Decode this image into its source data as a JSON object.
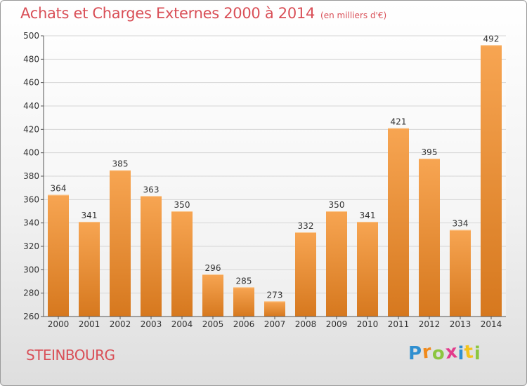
{
  "header": {
    "title": "Achats et Charges Externes 2000 à 2014",
    "subtitle": "(en milliers d'€)"
  },
  "footer": {
    "city": "STEINBOURG",
    "logo_letters": [
      {
        "ch": "P",
        "color": "#2f8fd0"
      },
      {
        "ch": "r",
        "color": "#f08a1c"
      },
      {
        "ch": "o",
        "color": "#8cc63f"
      },
      {
        "ch": "x",
        "color": "#e23c8c"
      },
      {
        "ch": "i",
        "color": "#2f8fd0"
      },
      {
        "ch": "t",
        "color": "#f3c31b"
      },
      {
        "ch": "i",
        "color": "#8cc63f"
      }
    ]
  },
  "colors": {
    "bar_top": "#f7a552",
    "bar_bottom": "#d6781e",
    "accent": "#d94f57",
    "grid": "#d6d6d6"
  },
  "chart_data": {
    "type": "bar",
    "categories": [
      "2000",
      "2001",
      "2002",
      "2003",
      "2004",
      "2005",
      "2006",
      "2007",
      "2008",
      "2009",
      "2010",
      "2011",
      "2012",
      "2013",
      "2014"
    ],
    "values": [
      364,
      341,
      385,
      363,
      350,
      296,
      285,
      273,
      332,
      350,
      341,
      421,
      395,
      334,
      492
    ],
    "ylim": [
      260,
      500
    ],
    "yticks": [
      260,
      280,
      300,
      320,
      340,
      360,
      380,
      400,
      420,
      440,
      460,
      480,
      500
    ],
    "grid": true,
    "legend": "none"
  }
}
